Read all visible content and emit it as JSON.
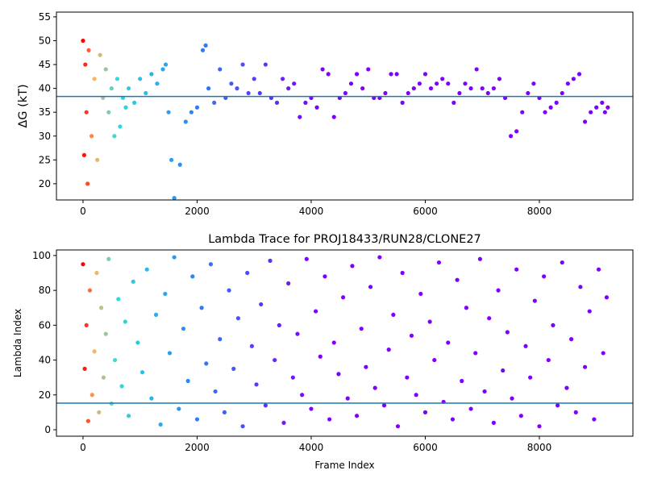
{
  "chart_data": [
    {
      "type": "scatter",
      "ylabel": "ΔG (kT)",
      "xlim": [
        -466,
        9640
      ],
      "ylim": [
        16.6,
        56
      ],
      "xticks": [
        0,
        2000,
        4000,
        6000,
        8000
      ],
      "yticks": [
        20,
        25,
        30,
        35,
        40,
        45,
        50,
        55
      ],
      "hline": 38.3,
      "hline_color": "#1f77b4",
      "colormap": {
        "x": [
          0,
          200,
          600,
          2000,
          4000
        ],
        "colors": [
          "#ff0000",
          "#ffb360",
          "#2adddd",
          "#2c7ef7",
          "#8000ff"
        ]
      },
      "x": [
        0,
        20,
        40,
        60,
        80,
        100,
        150,
        200,
        250,
        300,
        350,
        400,
        450,
        500,
        550,
        600,
        650,
        700,
        750,
        800,
        900,
        1000,
        1100,
        1200,
        1300,
        1400,
        1450,
        1500,
        1550,
        1600,
        1700,
        1800,
        1900,
        2000,
        2100,
        2150,
        2200,
        2300,
        2400,
        2500,
        2600,
        2700,
        2800,
        2900,
        3000,
        3100,
        3200,
        3300,
        3400,
        3500,
        3600,
        3700,
        3800,
        3900,
        4000,
        4100,
        4200,
        4300,
        4400,
        4500,
        4600,
        4700,
        4800,
        4900,
        5000,
        5100,
        5200,
        5300,
        5400,
        5500,
        5600,
        5700,
        5800,
        5900,
        6000,
        6100,
        6200,
        6300,
        6400,
        6500,
        6600,
        6700,
        6800,
        6900,
        7000,
        7100,
        7200,
        7300,
        7400,
        7500,
        7600,
        7700,
        7800,
        7900,
        8000,
        8100,
        8200,
        8300,
        8400,
        8500,
        8600,
        8700,
        8800,
        8900,
        9000,
        9100,
        9150,
        9200
      ],
      "values": [
        50,
        26,
        45,
        35,
        20,
        48,
        30,
        42,
        25,
        47,
        38,
        44,
        35,
        40,
        30,
        42,
        32,
        38,
        36,
        40,
        37,
        42,
        39,
        43,
        41,
        44,
        45,
        35,
        25,
        17,
        24,
        33,
        35,
        36,
        48,
        49,
        40,
        37,
        44,
        38,
        41,
        40,
        45,
        39,
        42,
        39,
        45,
        38,
        37,
        42,
        40,
        41,
        34,
        37,
        38,
        36,
        44,
        43,
        34,
        38,
        39,
        41,
        43,
        40,
        44,
        38,
        38,
        39,
        43,
        43,
        37,
        39,
        40,
        41,
        43,
        40,
        41,
        42,
        41,
        37,
        39,
        41,
        40,
        44,
        40,
        39,
        40,
        42,
        38,
        30,
        31,
        35,
        39,
        41,
        38,
        35,
        36,
        37,
        39,
        41,
        42,
        43,
        33,
        35,
        36,
        37,
        35,
        36
      ]
    },
    {
      "type": "scatter",
      "title": "Lambda Trace for PROJ18433/RUN28/CLONE27",
      "xlabel": "Frame Index",
      "ylabel": "Lambda Index",
      "xlim": [
        -466,
        9640
      ],
      "ylim": [
        -3.7,
        103.2
      ],
      "xticks": [
        0,
        2000,
        4000,
        6000,
        8000
      ],
      "yticks": [
        0,
        20,
        40,
        60,
        80,
        100
      ],
      "hline": 15.3,
      "hline_color": "#1f77b4",
      "colormap": {
        "x": [
          0,
          200,
          600,
          2000,
          4000
        ],
        "colors": [
          "#ff0000",
          "#ffb360",
          "#2adddd",
          "#2c7ef7",
          "#8000ff"
        ]
      },
      "x": [
        0,
        30,
        60,
        90,
        120,
        160,
        200,
        240,
        280,
        320,
        360,
        400,
        450,
        500,
        560,
        620,
        680,
        740,
        800,
        880,
        960,
        1040,
        1120,
        1200,
        1280,
        1360,
        1440,
        1520,
        1600,
        1680,
        1760,
        1840,
        1920,
        2000,
        2080,
        2160,
        2240,
        2320,
        2400,
        2480,
        2560,
        2640,
        2720,
        2800,
        2880,
        2960,
        3040,
        3120,
        3200,
        3280,
        3360,
        3440,
        3520,
        3600,
        3680,
        3760,
        3840,
        3920,
        4000,
        4080,
        4160,
        4240,
        4320,
        4400,
        4480,
        4560,
        4640,
        4720,
        4800,
        4880,
        4960,
        5040,
        5120,
        5200,
        5280,
        5360,
        5440,
        5520,
        5600,
        5680,
        5760,
        5840,
        5920,
        6000,
        6080,
        6160,
        6240,
        6320,
        6400,
        6480,
        6560,
        6640,
        6720,
        6800,
        6880,
        6960,
        7040,
        7120,
        7200,
        7280,
        7360,
        7440,
        7520,
        7600,
        7680,
        7760,
        7840,
        7920,
        8000,
        8080,
        8160,
        8240,
        8320,
        8400,
        8480,
        8560,
        8640,
        8720,
        8800,
        8880,
        8960,
        9040,
        9120,
        9180
      ],
      "values": [
        95,
        35,
        60,
        5,
        80,
        20,
        45,
        90,
        10,
        70,
        30,
        55,
        98,
        15,
        40,
        75,
        25,
        62,
        8,
        85,
        50,
        33,
        92,
        18,
        66,
        3,
        78,
        44,
        99,
        12,
        58,
        28,
        88,
        6,
        70,
        38,
        95,
        22,
        52,
        10,
        80,
        35,
        64,
        2,
        90,
        48,
        26,
        72,
        14,
        97,
        40,
        60,
        4,
        84,
        30,
        55,
        20,
        98,
        12,
        68,
        42,
        88,
        6,
        50,
        32,
        76,
        18,
        94,
        8,
        58,
        36,
        82,
        24,
        99,
        14,
        46,
        66,
        2,
        90,
        30,
        54,
        20,
        78,
        10,
        62,
        40,
        96,
        16,
        50,
        6,
        86,
        28,
        70,
        12,
        44,
        98,
        22,
        64,
        4,
        80,
        34,
        56,
        18,
        92,
        8,
        48,
        30,
        74,
        2,
        88,
        40,
        60,
        14,
        96,
        24,
        52,
        10,
        82,
        36,
        68,
        6,
        92,
        44,
        76
      ]
    }
  ]
}
